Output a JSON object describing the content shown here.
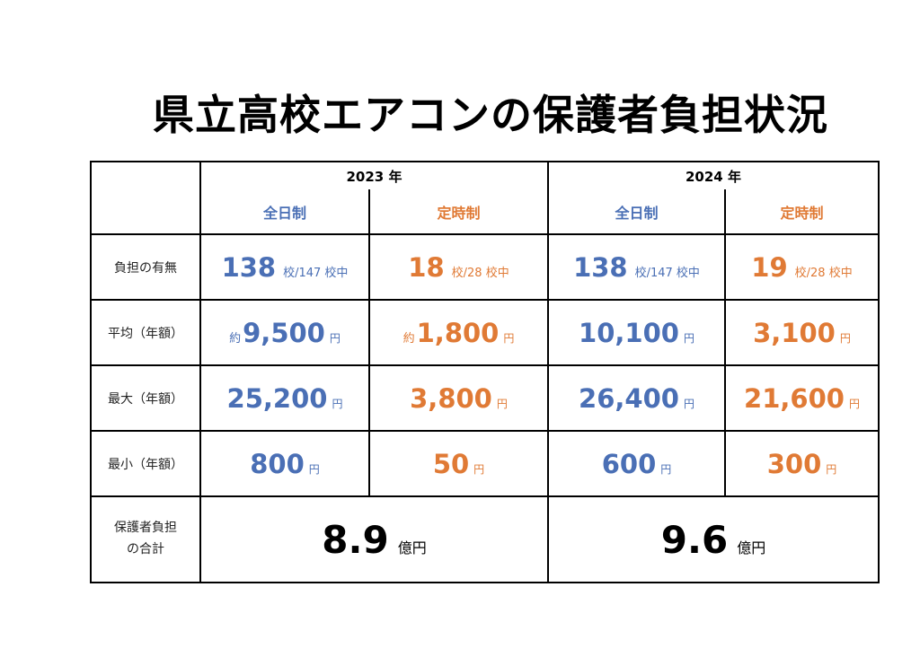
{
  "title": "県立高校エアコンの保護者負担状況",
  "years": [
    "2023 年",
    "2024 年"
  ],
  "types": {
    "full": "全日制",
    "part": "定時制"
  },
  "rows": {
    "burden": {
      "label": "負担の有無",
      "cells": [
        {
          "value": "138",
          "suffix": "校/147 校中"
        },
        {
          "value": "18",
          "suffix": "校/28 校中"
        },
        {
          "value": "138",
          "suffix": "校/147 校中"
        },
        {
          "value": "19",
          "suffix": "校/28 校中"
        }
      ]
    },
    "avg": {
      "label": "平均（年額）",
      "cells": [
        {
          "prefix": "約",
          "value": "9,500",
          "unit": "円"
        },
        {
          "prefix": "約",
          "value": "1,800",
          "unit": "円"
        },
        {
          "value": "10,100",
          "unit": "円"
        },
        {
          "value": "3,100",
          "unit": "円"
        }
      ]
    },
    "max": {
      "label": "最大（年額）",
      "cells": [
        {
          "value": "25,200",
          "unit": "円"
        },
        {
          "value": "3,800",
          "unit": "円"
        },
        {
          "value": "26,400",
          "unit": "円"
        },
        {
          "value": "21,600",
          "unit": "円"
        }
      ]
    },
    "min": {
      "label": "最小（年額）",
      "cells": [
        {
          "value": "800",
          "unit": "円"
        },
        {
          "value": "50",
          "unit": "円"
        },
        {
          "value": "600",
          "unit": "円"
        },
        {
          "value": "300",
          "unit": "円"
        }
      ]
    },
    "total": {
      "label_line1": "保護者負担",
      "label_line2": "の合計",
      "cells": [
        {
          "value": "8.9",
          "unit": "億円"
        },
        {
          "value": "9.6",
          "unit": "億円"
        }
      ]
    }
  },
  "colors": {
    "full_time": "#4a6fb5",
    "part_time": "#e07a35"
  }
}
